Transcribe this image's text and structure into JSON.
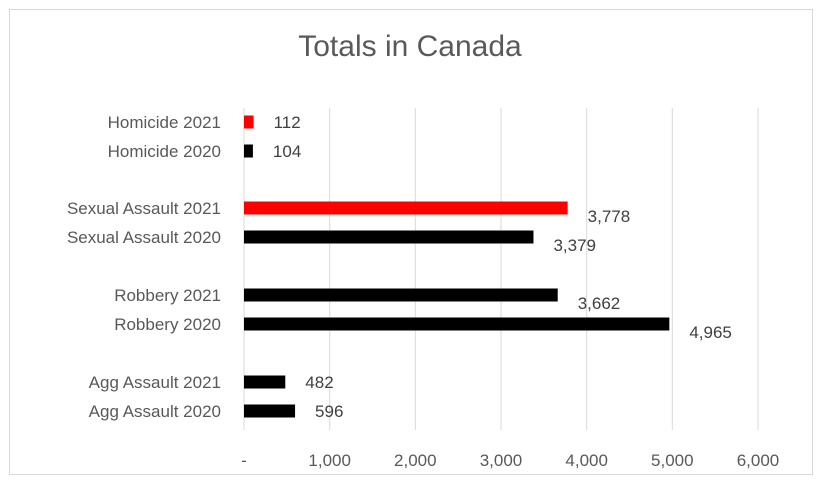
{
  "chart_data": {
    "type": "bar",
    "orientation": "horizontal",
    "title": "Totals in Canada",
    "categories": [
      "Homicide 2021",
      "Homicide 2020",
      "Sexual Assault 2021",
      "Sexual Assault 2020",
      "Robbery 2021",
      "Robbery 2020",
      "Agg Assault 2021",
      "Agg Assault 2020"
    ],
    "values": [
      112,
      104,
      3778,
      3379,
      3662,
      4965,
      482,
      596
    ],
    "data_labels": [
      "112",
      "104",
      "3,778",
      "3,379",
      "3,662",
      "4,965",
      "482",
      "596"
    ],
    "bar_colors": [
      "#ff0000",
      "#000000",
      "#ff0000",
      "#000000",
      "#000000",
      "#000000",
      "#000000",
      "#000000"
    ],
    "xlim": [
      0,
      6000
    ],
    "x_ticks": [
      0,
      1000,
      2000,
      3000,
      4000,
      5000,
      6000
    ],
    "x_tick_labels": [
      "-",
      "1,000",
      "2,000",
      "3,000",
      "4,000",
      "5,000",
      "6,000"
    ],
    "xlabel": "",
    "ylabel": "",
    "grid": "vertical",
    "legend": "none"
  }
}
